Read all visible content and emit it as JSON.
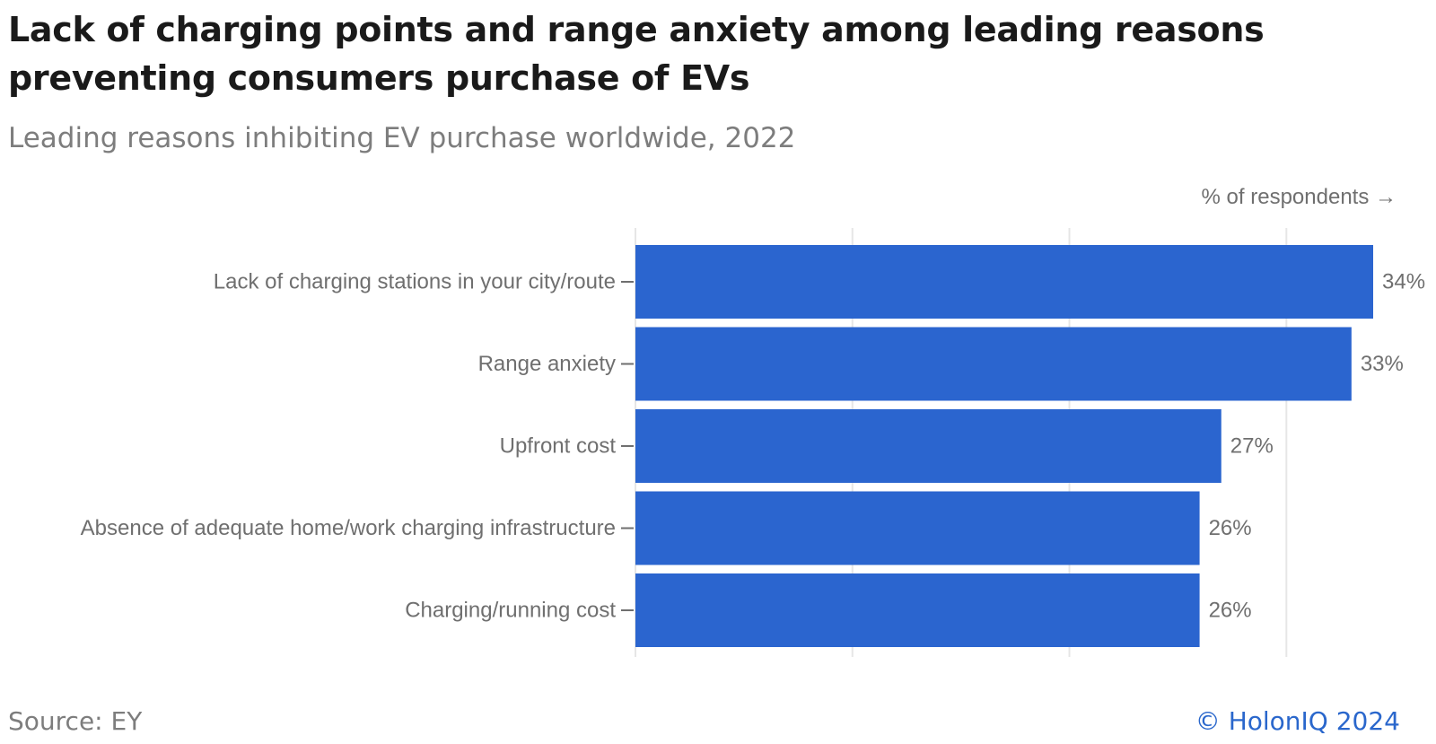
{
  "chart_data": {
    "type": "bar",
    "orientation": "horizontal",
    "title": "Lack of charging points and range anxiety among leading reasons preventing consumers purchase of EVs",
    "subtitle": "Leading reasons inhibiting EV purchase worldwide, 2022",
    "xlabel": "% of respondents →",
    "ylabel": "",
    "categories": [
      "Lack of charging stations in your city/route",
      "Range anxiety",
      "Upfront cost",
      "Absence of adequate home/work charging infrastructure",
      "Charging/running cost"
    ],
    "values": [
      34,
      33,
      27,
      26,
      26
    ],
    "value_labels": [
      "34%",
      "33%",
      "27%",
      "26%",
      "26%"
    ],
    "xlim": [
      0,
      34
    ],
    "gridlines": [
      0,
      10,
      20,
      30
    ],
    "grid": true,
    "legend": "none"
  },
  "source": "Source: EY",
  "copyright": "© HolonIQ 2024",
  "colors": {
    "bar": "#2b65cf",
    "grid": "#e6e6e6",
    "text": "#6f6f6f",
    "title": "#1a1a1a",
    "brand": "#2a67cc"
  }
}
